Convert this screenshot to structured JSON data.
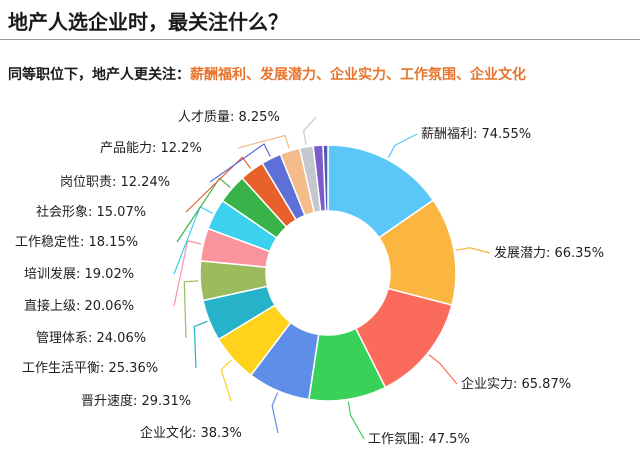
{
  "page": {
    "title": "地产人选企业时，最关注什么？",
    "subtitle_lead": "同等职位下，地产人更关注：",
    "subtitle_highlight": "薪酬福利、发展潜力、企业实力、工作氛围、企业文化"
  },
  "chart_data": {
    "type": "pie",
    "variant": "donut",
    "unit": "%",
    "categories": [
      "薪酬福利",
      "发展潜力",
      "企业实力",
      "工作氛围",
      "企业文化",
      "晋升速度",
      "工作生活平衡",
      "管理体系",
      "直接上级",
      "培训发展",
      "工作稳定性",
      "社会形象",
      "岗位职责",
      "产品能力",
      "人才质量",
      "",
      ""
    ],
    "values": [
      74.55,
      66.35,
      65.87,
      47.5,
      38.3,
      29.31,
      25.36,
      24.06,
      20.06,
      19.02,
      18.15,
      15.07,
      12.24,
      12.2,
      8.25,
      6,
      3
    ],
    "labels": [
      "薪酬福利: 74.55%",
      "发展潜力: 66.35%",
      "企业实力: 65.87%",
      "工作氛围: 47.5%",
      "企业文化: 38.3%",
      "晋升速度: 29.31%",
      "工作生活平衡: 25.36%",
      "管理体系: 24.06%",
      "直接上级: 20.06%",
      "培训发展: 19.02%",
      "工作稳定性: 18.15%",
      "社会形象: 15.07%",
      "岗位职责: 12.24%",
      "产品能力: 12.2%",
      "人才质量: 8.25%",
      "",
      ""
    ],
    "colors": [
      "#5bc7f9",
      "#fbb541",
      "#fb6b5b",
      "#3ad15a",
      "#5f8ee8",
      "#ffd21b",
      "#26b2c8",
      "#9bbc5c",
      "#f9939c",
      "#3cd1ee",
      "#39b24a",
      "#e8602c",
      "#5c70d8",
      "#f4bc8a",
      "#c3c7ce",
      "#7d5cc9",
      "#4b5ab8"
    ],
    "legend": "none"
  }
}
